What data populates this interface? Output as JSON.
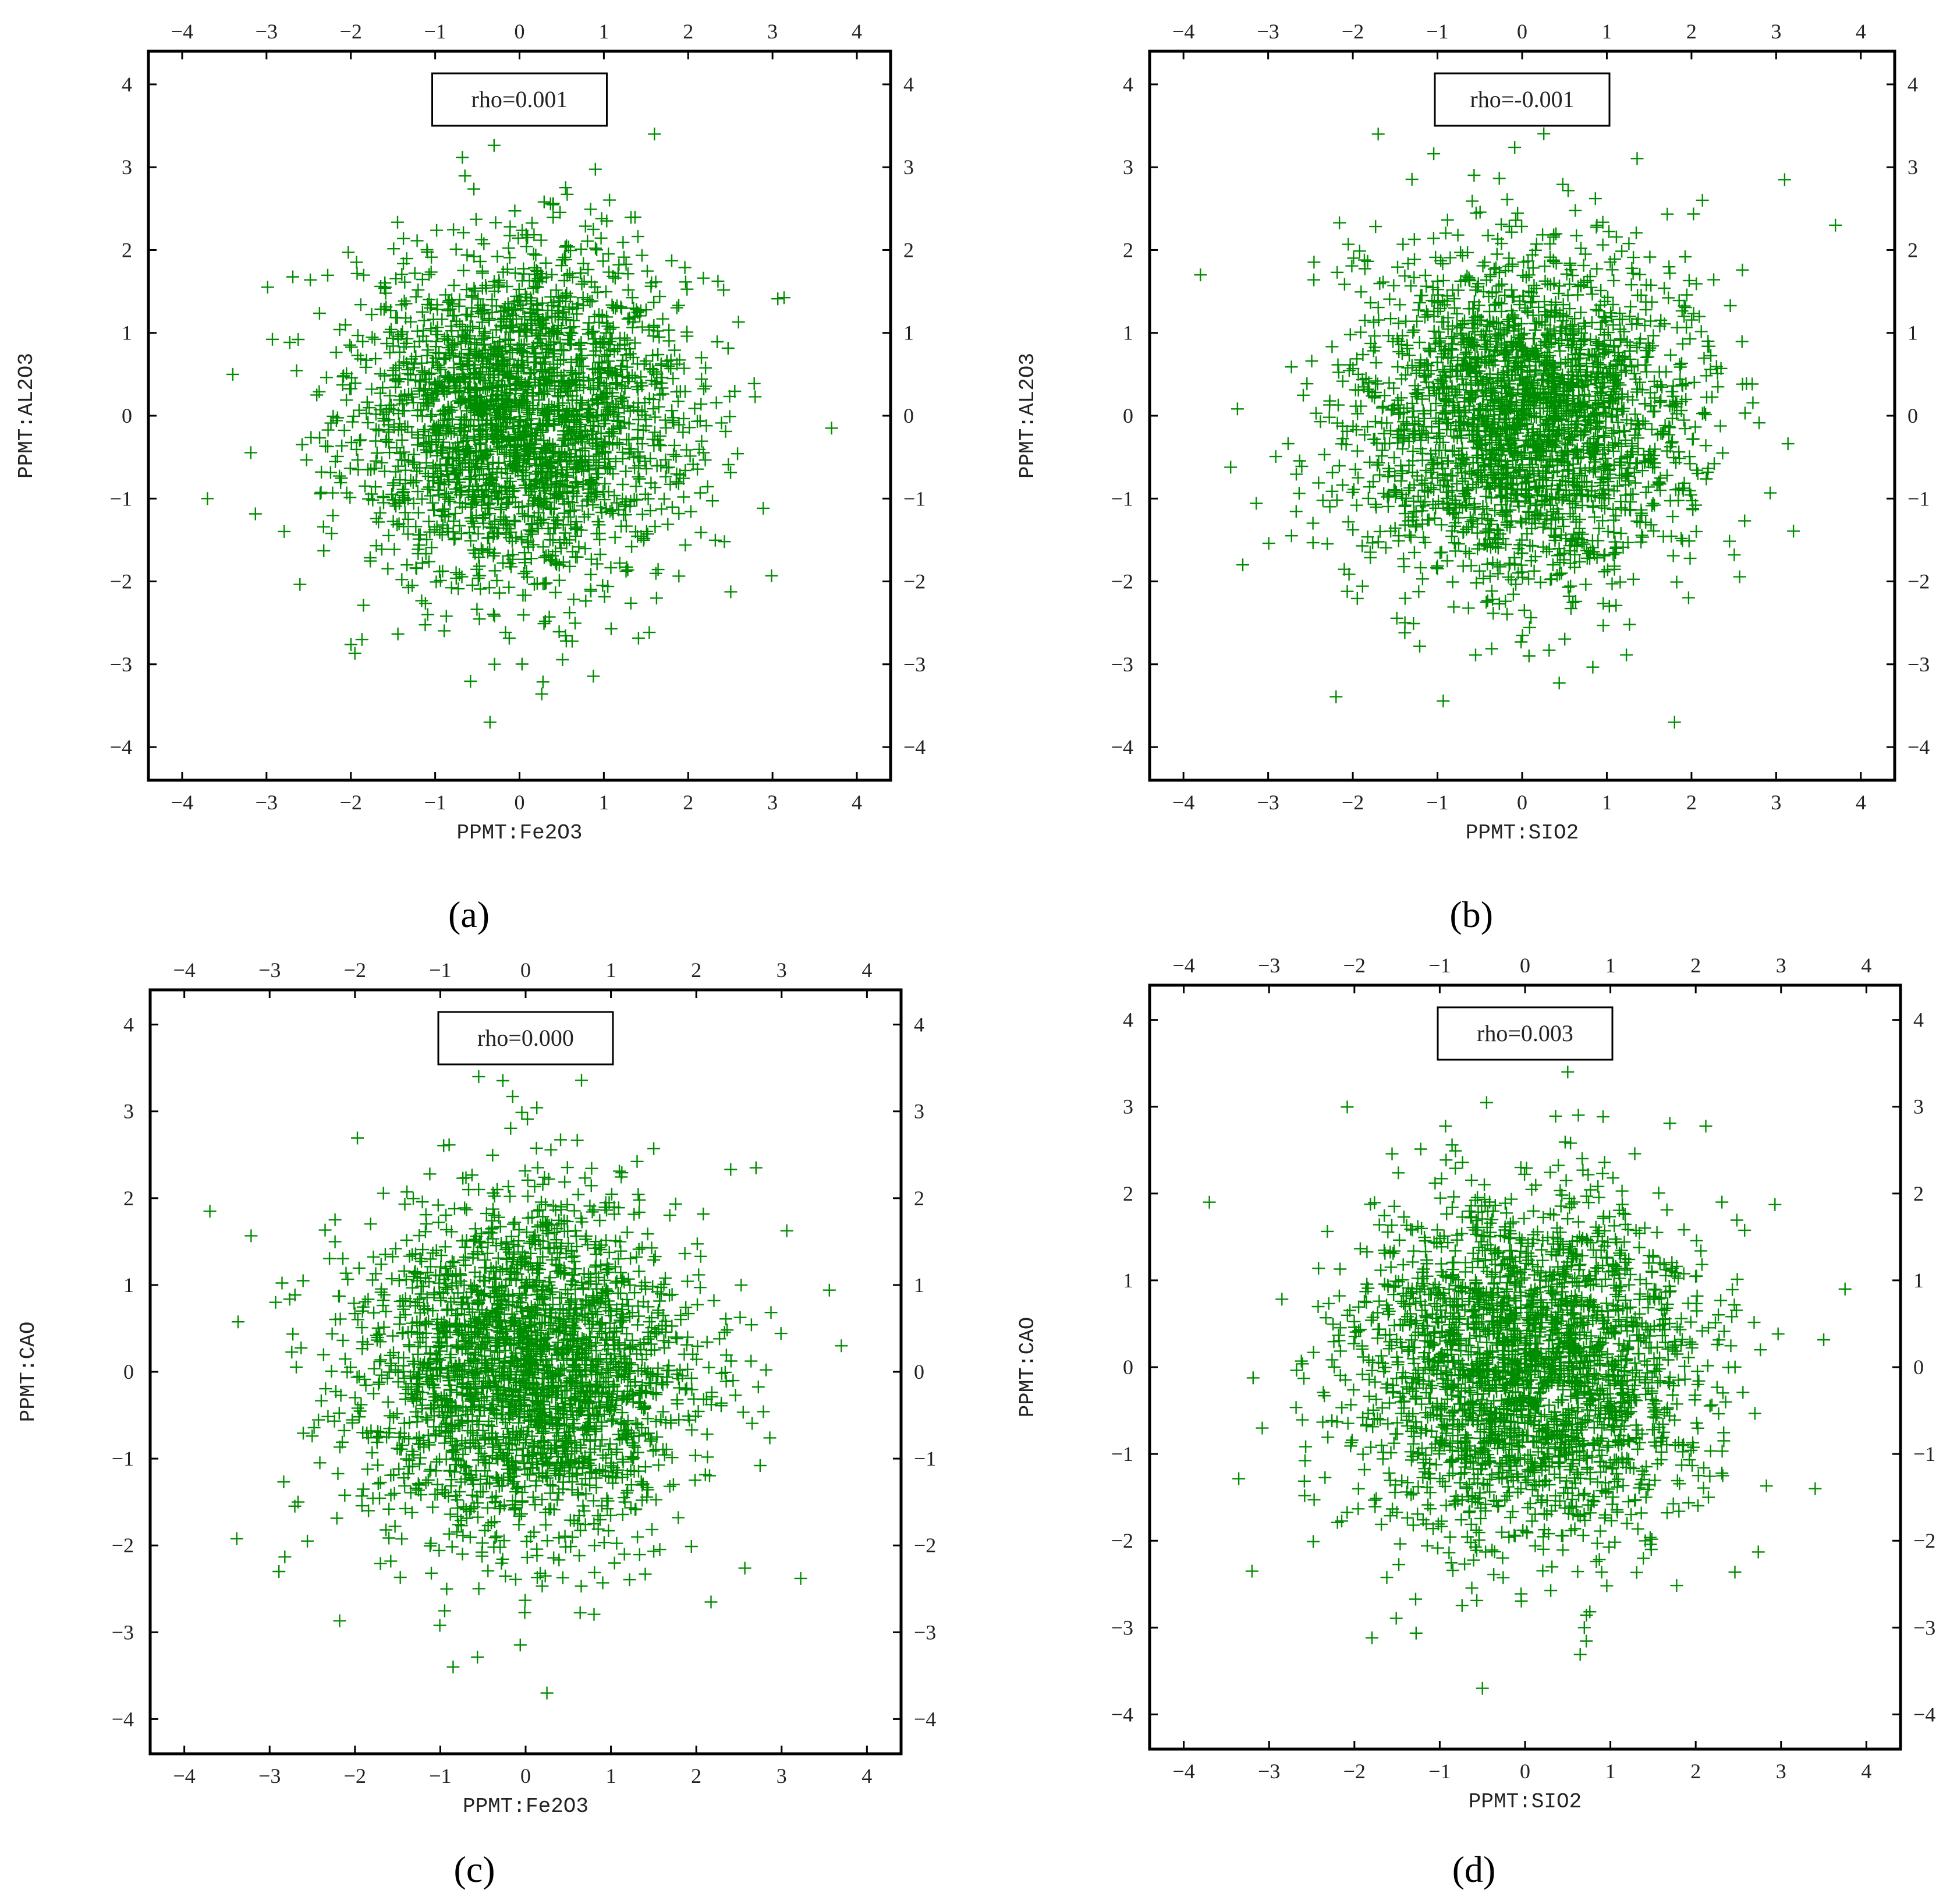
{
  "figure": {
    "marker_color": "#008c00",
    "axis_color": "#000000",
    "marker": "plus"
  },
  "chart_data": [
    {
      "id": "a",
      "type": "scatter",
      "panel_label": "a",
      "annotation": "rho=0.001",
      "xlabel": "PPMT:Fe2O3",
      "ylabel": "PPMT:AL2O3",
      "xlim": [
        -4.4,
        4.4
      ],
      "ylim": [
        -4.4,
        4.4
      ],
      "xticks": [
        -4,
        -3,
        -2,
        -1,
        0,
        1,
        2,
        3,
        4
      ],
      "yticks": [
        -4,
        -3,
        -2,
        -1,
        0,
        1,
        2,
        3,
        4
      ],
      "rho": 0.001,
      "n_points": 2500,
      "distribution": "standard bivariate normal (approximate reading)",
      "grid": false,
      "legend": "none",
      "notable_points": [
        [
          -3.7,
          -1.0
        ],
        [
          -3.4,
          0.5
        ],
        [
          -0.4,
          3.7
        ],
        [
          3.7,
          -0.15
        ],
        [
          -0.35,
          -3.7
        ],
        [
          1.6,
          3.4
        ]
      ]
    },
    {
      "id": "b",
      "type": "scatter",
      "panel_label": "b",
      "annotation": "rho=-0.001",
      "xlabel": "PPMT:SIO2",
      "ylabel": "PPMT:AL2O3",
      "xlim": [
        -4.4,
        4.4
      ],
      "ylim": [
        -4.4,
        4.4
      ],
      "xticks": [
        -4,
        -3,
        -2,
        -1,
        0,
        1,
        2,
        3,
        4
      ],
      "yticks": [
        -4,
        -3,
        -2,
        -1,
        0,
        1,
        2,
        3,
        4
      ],
      "rho": -0.001,
      "n_points": 2500,
      "distribution": "standard bivariate normal (approximate reading)",
      "grid": false,
      "legend": "none",
      "notable_points": [
        [
          -3.8,
          1.7
        ],
        [
          3.7,
          2.3
        ],
        [
          3.1,
          2.85
        ],
        [
          -1.7,
          3.4
        ],
        [
          1.8,
          -3.7
        ],
        [
          -3.3,
          -1.8
        ]
      ]
    },
    {
      "id": "c",
      "type": "scatter",
      "panel_label": "c",
      "annotation": "rho=0.000",
      "xlabel": "PPMT:Fe2O3",
      "ylabel": "PPMT:CAO",
      "xlim": [
        -4.4,
        4.4
      ],
      "ylim": [
        -4.4,
        4.4
      ],
      "xticks": [
        -4,
        -3,
        -2,
        -1,
        0,
        1,
        2,
        3,
        4
      ],
      "yticks": [
        -4,
        -3,
        -2,
        -1,
        0,
        1,
        2,
        3,
        4
      ],
      "rho": 0.0,
      "n_points": 2500,
      "distribution": "standard bivariate normal (approximate reading)",
      "grid": false,
      "legend": "none",
      "notable_points": [
        [
          -3.7,
          1.85
        ],
        [
          3.7,
          0.3
        ],
        [
          0.25,
          -3.7
        ],
        [
          -0.85,
          -3.4
        ],
        [
          -0.55,
          3.4
        ],
        [
          2.7,
          2.35
        ]
      ]
    },
    {
      "id": "d",
      "type": "scatter",
      "panel_label": "d",
      "annotation": "rho=0.003",
      "xlabel": "PPMT:SIO2",
      "ylabel": "PPMT:CAO",
      "xlim": [
        -4.4,
        4.4
      ],
      "ylim": [
        -4.4,
        4.4
      ],
      "xticks": [
        -4,
        -3,
        -2,
        -1,
        0,
        1,
        2,
        3,
        4
      ],
      "yticks": [
        -4,
        -3,
        -2,
        -1,
        0,
        1,
        2,
        3,
        4
      ],
      "rho": 0.003,
      "n_points": 2500,
      "distribution": "standard bivariate normal (approximate reading)",
      "grid": false,
      "legend": "none",
      "notable_points": [
        [
          -3.7,
          1.9
        ],
        [
          3.75,
          0.9
        ],
        [
          3.4,
          -1.4
        ],
        [
          -0.5,
          -3.7
        ],
        [
          0.5,
          3.4
        ],
        [
          -3.2,
          -2.35
        ]
      ]
    }
  ]
}
